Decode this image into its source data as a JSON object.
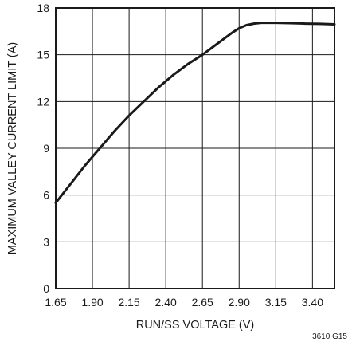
{
  "chart_data": {
    "type": "line",
    "xlabel": "RUN/SS VOLTAGE (V)",
    "ylabel": "MAXIMUM VALLEY CURRENT LIMIT (A)",
    "figure_id": "3610 G15",
    "xlim": [
      1.65,
      3.55
    ],
    "ylim": [
      0,
      18
    ],
    "x_ticks": [
      "1.65",
      "1.90",
      "2.15",
      "2.40",
      "2.65",
      "2.90",
      "3.15",
      "3.40"
    ],
    "y_ticks": [
      "0",
      "3",
      "6",
      "9",
      "12",
      "15",
      "18"
    ],
    "grid": true,
    "series": [
      {
        "x": [
          1.65,
          1.75,
          1.85,
          1.95,
          2.05,
          2.15,
          2.25,
          2.35,
          2.45,
          2.55,
          2.65,
          2.75,
          2.85,
          2.9,
          2.95,
          3.0,
          3.05,
          3.15,
          3.25,
          3.35,
          3.45,
          3.55
        ],
        "y": [
          5.5,
          6.7,
          7.9,
          9.0,
          10.1,
          11.1,
          12.0,
          12.9,
          13.7,
          14.4,
          15.0,
          15.7,
          16.4,
          16.7,
          16.9,
          17.0,
          17.05,
          17.05,
          17.03,
          17.0,
          16.98,
          16.95
        ]
      }
    ],
    "line_color": "#1a1a1a"
  }
}
